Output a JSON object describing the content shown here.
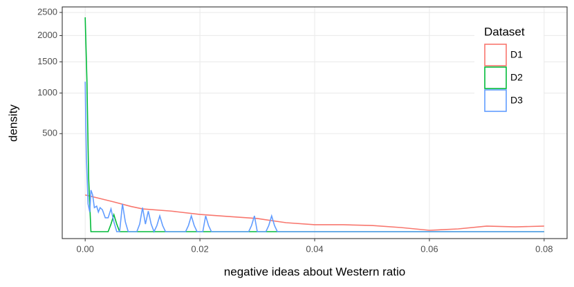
{
  "chart_data": {
    "type": "line",
    "x_label": "negative ideas about Western ratio",
    "y_label": "density",
    "legend_title": "Dataset",
    "legend_position": "top-right",
    "grid": true,
    "yscale": "sqrt",
    "xlim": [
      -0.004,
      0.084
    ],
    "ylim": [
      0,
      2628
    ],
    "xticks": [
      {
        "value": 0,
        "label": "0.00"
      },
      0.02,
      0.04,
      0.06,
      0.08
    ],
    "yticks": [
      500,
      1000,
      1500,
      2000,
      2500
    ],
    "series": [
      {
        "name": "D1",
        "color": "#f8766d",
        "x": [
          0,
          0.002,
          0.005,
          0.008,
          0.01,
          0.015,
          0.02,
          0.025,
          0.03,
          0.035,
          0.04,
          0.045,
          0.05,
          0.055,
          0.06,
          0.065,
          0.07,
          0.075,
          0.08
        ],
        "values": [
          70,
          60,
          46,
          33,
          27,
          22,
          15.5,
          12,
          9,
          4.2,
          2.5,
          2.5,
          2,
          0.9,
          0.1,
          0.4,
          1.6,
          1.2,
          1.6
        ]
      },
      {
        "name": "D2",
        "color": "#00ba38",
        "x": [
          0,
          0.0003,
          0.0006,
          0.001,
          0.004,
          0.0045,
          0.005,
          0.0055,
          0.006,
          0.08
        ],
        "values": [
          2390,
          1200,
          150,
          0,
          0,
          3,
          15,
          3,
          0,
          0
        ]
      },
      {
        "name": "D3",
        "color": "#619cff",
        "x": [
          0,
          0.0002,
          0.0005,
          0.0008,
          0.001,
          0.0013,
          0.0016,
          0.002,
          0.0023,
          0.0026,
          0.003,
          0.0035,
          0.004,
          0.0045,
          0.005,
          0.0055,
          0.006,
          0.0065,
          0.007,
          0.0075,
          0.009,
          0.0095,
          0.01,
          0.0105,
          0.011,
          0.0115,
          0.012,
          0.0125,
          0.013,
          0.0135,
          0.014,
          0.0175,
          0.018,
          0.0185,
          0.019,
          0.0195,
          0.0205,
          0.021,
          0.0215,
          0.022,
          0.0285,
          0.029,
          0.0295,
          0.03,
          0.0315,
          0.032,
          0.0325,
          0.033,
          0.0335,
          0.08
        ],
        "values": [
          1170,
          300,
          40,
          20,
          90,
          70,
          30,
          34,
          20,
          30,
          25,
          10,
          10,
          27,
          5,
          0,
          0,
          40,
          5,
          0,
          0,
          3,
          30,
          3,
          22,
          3,
          0,
          2,
          13,
          2,
          0,
          0,
          2,
          13,
          2,
          0,
          0,
          13,
          2,
          0,
          0,
          2,
          13,
          0,
          0,
          2,
          13,
          2,
          0,
          0
        ]
      }
    ]
  }
}
